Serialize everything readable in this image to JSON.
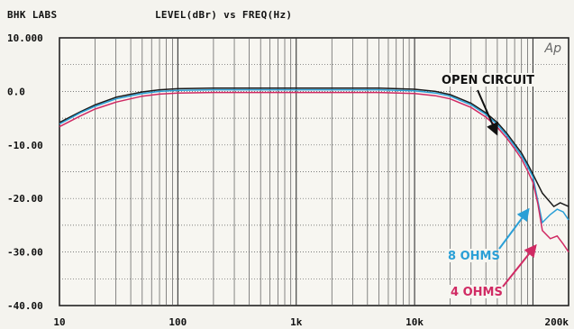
{
  "header": {
    "lab": "BHK LABS",
    "title": "LEVEL(dBr) vs FREQ(Hz)"
  },
  "chart_data": {
    "type": "line",
    "title": "LEVEL(dBr) vs FREQ(Hz)",
    "xlabel": "FREQ(Hz)",
    "ylabel": "LEVEL(dBr)",
    "x_scale": "log",
    "xlim": [
      10,
      200000
    ],
    "ylim": [
      -40,
      10
    ],
    "grid": true,
    "y_ticks": [
      {
        "value": 10,
        "label": "10.000"
      },
      {
        "value": 0,
        "label": "0.0"
      },
      {
        "value": -10,
        "label": "-10.00"
      },
      {
        "value": -20,
        "label": "-20.00"
      },
      {
        "value": -30,
        "label": "-30.00"
      },
      {
        "value": -40,
        "label": "-40.00"
      }
    ],
    "x_ticks": [
      {
        "value": 10,
        "label": "10"
      },
      {
        "value": 100,
        "label": "100"
      },
      {
        "value": 1000,
        "label": "1k"
      },
      {
        "value": 10000,
        "label": "10k"
      },
      {
        "value": 200000,
        "label": "200k"
      }
    ],
    "logo": "Ap",
    "series": [
      {
        "name": "OPEN CIRCUIT",
        "color": "#1a1a1a",
        "x": [
          10,
          15,
          20,
          30,
          50,
          70,
          100,
          200,
          500,
          1000,
          2000,
          5000,
          10000,
          15000,
          20000,
          30000,
          40000,
          50000,
          60000,
          70000,
          80000,
          90000,
          100000,
          120000,
          150000,
          170000,
          200000
        ],
        "y": [
          -5.8,
          -3.8,
          -2.5,
          -1.1,
          -0.1,
          0.3,
          0.5,
          0.6,
          0.6,
          0.6,
          0.6,
          0.6,
          0.4,
          0.0,
          -0.6,
          -2.2,
          -4.0,
          -5.8,
          -7.8,
          -9.8,
          -11.5,
          -13.5,
          -15.5,
          -19.0,
          -21.5,
          -20.8,
          -21.5
        ]
      },
      {
        "name": "8 OHMS",
        "color": "#2a9fd6",
        "x": [
          10,
          15,
          20,
          30,
          50,
          70,
          100,
          200,
          500,
          1000,
          2000,
          5000,
          10000,
          15000,
          20000,
          30000,
          40000,
          50000,
          60000,
          70000,
          80000,
          90000,
          100000,
          110000,
          120000,
          140000,
          160000,
          180000,
          200000
        ],
        "y": [
          -6.1,
          -4.0,
          -2.8,
          -1.4,
          -0.4,
          -0.0,
          0.2,
          0.3,
          0.3,
          0.3,
          0.3,
          0.3,
          0.1,
          -0.3,
          -0.9,
          -2.5,
          -4.3,
          -6.2,
          -8.2,
          -10.2,
          -12.0,
          -14.0,
          -16.0,
          -20.5,
          -24.5,
          -23.0,
          -22.0,
          -22.5,
          -24.0
        ]
      },
      {
        "name": "4 OHMS",
        "color": "#d02a63",
        "x": [
          10,
          15,
          20,
          30,
          50,
          70,
          100,
          200,
          500,
          1000,
          2000,
          5000,
          10000,
          15000,
          20000,
          30000,
          40000,
          50000,
          60000,
          70000,
          80000,
          90000,
          100000,
          110000,
          120000,
          140000,
          160000,
          180000,
          200000
        ],
        "y": [
          -6.6,
          -4.6,
          -3.3,
          -2.0,
          -0.9,
          -0.5,
          -0.3,
          -0.2,
          -0.2,
          -0.2,
          -0.2,
          -0.2,
          -0.4,
          -0.8,
          -1.4,
          -3.0,
          -4.8,
          -6.7,
          -8.7,
          -10.7,
          -12.6,
          -14.8,
          -17.0,
          -21.0,
          -26.0,
          -27.5,
          -27.0,
          -28.5,
          -30.0
        ]
      }
    ],
    "annotations": [
      {
        "text": "OPEN CIRCUIT",
        "color": "#111111"
      },
      {
        "text": "8 OHMS",
        "color": "#2a9fd6"
      },
      {
        "text": "4 OHMS",
        "color": "#d02a63"
      }
    ]
  }
}
